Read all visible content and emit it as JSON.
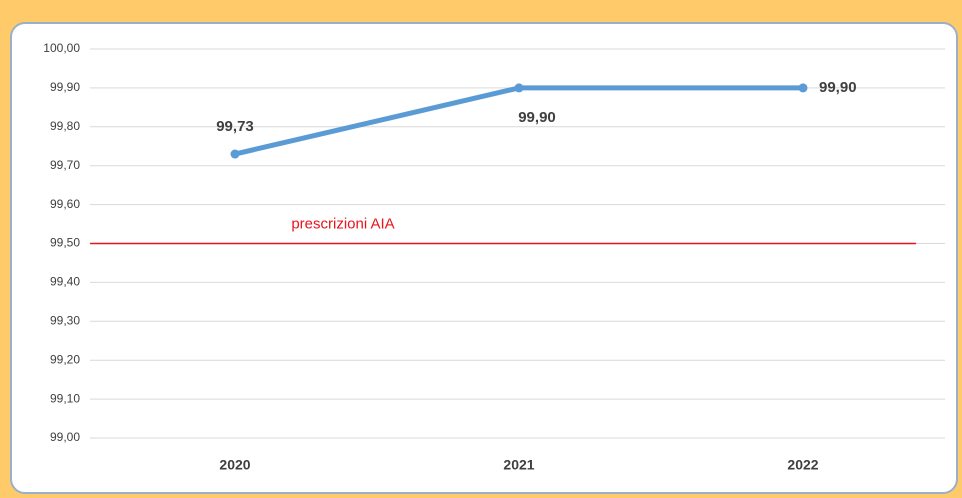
{
  "chart_data": {
    "type": "line",
    "categories": [
      "2020",
      "2021",
      "2022"
    ],
    "series": [
      {
        "color": "#5b9bd5",
        "values": [
          99.73,
          99.9,
          99.9
        ],
        "value_labels": [
          "99,73",
          "99,90",
          "99,90"
        ]
      }
    ],
    "ylim": [
      99.0,
      100.0
    ],
    "yticks": [
      {
        "value": 99.0,
        "label": "99,00"
      },
      {
        "value": 99.1,
        "label": "99,10"
      },
      {
        "value": 99.2,
        "label": "99,20"
      },
      {
        "value": 99.3,
        "label": "99,30"
      },
      {
        "value": 99.4,
        "label": "99,40"
      },
      {
        "value": 99.5,
        "label": "99,50"
      },
      {
        "value": 99.6,
        "label": "99,60"
      },
      {
        "value": 99.7,
        "label": "99,70"
      },
      {
        "value": 99.8,
        "label": "99,80"
      },
      {
        "value": 99.9,
        "label": "99,90"
      },
      {
        "value": 100.0,
        "label": "100,00"
      }
    ],
    "grid": true,
    "reference_line": {
      "value": 99.5,
      "label": "prescrizioni AIA",
      "color": "#e8141b"
    }
  }
}
